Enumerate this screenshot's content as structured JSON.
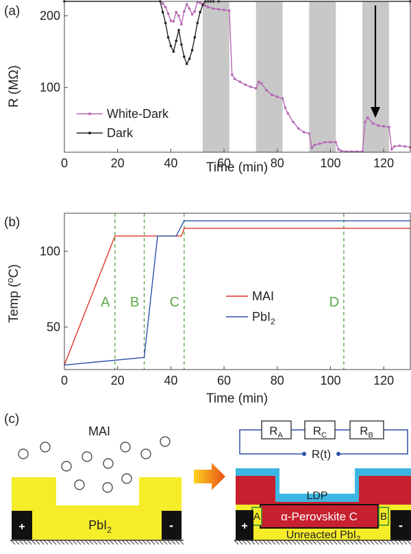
{
  "chart_data": [
    {
      "panel_label": "(a)",
      "type": "line",
      "xlabel": "Time (min)",
      "ylabel": "R (MΩ)",
      "xlim": [
        0,
        130
      ],
      "ylim": [
        10,
        220
      ],
      "x_ticks": [
        "0",
        "20",
        "40",
        "60",
        "80",
        "100",
        "120"
      ],
      "y_ticks": [
        "100",
        "200"
      ],
      "shaded_intervals": [
        [
          52,
          62
        ],
        [
          72,
          82
        ],
        [
          92,
          102
        ],
        [
          112,
          122
        ]
      ],
      "legend": {
        "placement": "bottom-left",
        "entries": [
          "White-Dark",
          "Dark"
        ]
      },
      "series": [
        {
          "name": "White-Dark",
          "color": "#b565b5",
          "x": [
            0,
            36,
            37,
            38,
            39,
            40,
            41,
            42,
            43,
            44,
            45,
            46,
            47,
            48,
            49,
            50,
            51,
            52,
            53,
            54,
            56,
            58,
            60,
            62,
            63,
            64,
            66,
            68,
            70,
            72,
            73,
            74,
            76,
            78,
            80,
            82,
            83,
            84,
            86,
            88,
            90,
            92,
            93,
            94,
            96,
            98,
            100,
            102,
            103,
            104,
            106,
            108,
            110,
            112,
            113,
            114,
            116,
            118,
            120,
            122,
            123,
            124,
            126,
            128,
            130
          ],
          "y": [
            220,
            220,
            217,
            212,
            203,
            193,
            192,
            205,
            200,
            188,
            206,
            216,
            210,
            202,
            206,
            219,
            218,
            216,
            214,
            212,
            210,
            209,
            208,
            207,
            118,
            112,
            108,
            104,
            101,
            99,
            108,
            106,
            96,
            90,
            87,
            85,
            72,
            64,
            52,
            43,
            38,
            36,
            16,
            20,
            22,
            24,
            24,
            24,
            14,
            12,
            11,
            11,
            11,
            11,
            52,
            58,
            50,
            47,
            46,
            45,
            14,
            18,
            19,
            18,
            17
          ]
        },
        {
          "name": "Dark",
          "color": "#222222",
          "x": [
            0,
            36,
            37,
            38,
            39,
            40,
            41,
            42,
            43,
            44,
            45,
            46,
            47,
            48,
            49,
            50,
            51,
            52,
            53,
            54,
            55,
            56,
            58,
            130
          ],
          "y": [
            220,
            220,
            205,
            190,
            170,
            158,
            150,
            165,
            180,
            160,
            143,
            133,
            140,
            152,
            170,
            190,
            205,
            215,
            220,
            220,
            220,
            220,
            220,
            220
          ]
        }
      ]
    },
    {
      "panel_label": "(b)",
      "type": "line",
      "xlabel": "Time (min)",
      "ylabel": "Temp (°C)",
      "xlim": [
        0,
        130
      ],
      "ylim": [
        22,
        125
      ],
      "x_ticks": [
        "0",
        "20",
        "40",
        "60",
        "80",
        "100",
        "120"
      ],
      "y_ticks": [
        "50",
        "100"
      ],
      "legend": {
        "placement": "center",
        "entries": [
          "MAI",
          "PbI2"
        ]
      },
      "markers": [
        {
          "label": "A",
          "x": 19
        },
        {
          "label": "B",
          "x": 30
        },
        {
          "label": "C",
          "x": 45
        },
        {
          "label": "D",
          "x": 105
        }
      ],
      "series": [
        {
          "name": "MAI",
          "color": "#e0302a",
          "x": [
            0,
            19,
            44,
            45,
            130
          ],
          "y": [
            25,
            110,
            110,
            115,
            115
          ]
        },
        {
          "name": "PbI2",
          "color": "#2a4fa8",
          "x": [
            0,
            30,
            35,
            40,
            42,
            45,
            130
          ],
          "y": [
            25,
            30,
            110,
            110,
            110,
            120,
            120
          ]
        }
      ]
    }
  ],
  "panel_c": {
    "label": "(c)",
    "left": {
      "mai_label": "MAI",
      "pbi2_label": "PbI",
      "pbi2_sub": "2",
      "plus": "+",
      "minus": "-"
    },
    "right": {
      "resistors": [
        {
          "main": "R",
          "sub": "A"
        },
        {
          "main": "R",
          "sub": "C"
        },
        {
          "main": "R",
          "sub": "B"
        }
      ],
      "rt_label": "R(t)",
      "ldp_label": "LDP",
      "perovskite_label": "α-Perovskite  C",
      "region_a": "A",
      "region_b": "B",
      "unreacted_label": "Unreacted PbI",
      "unreacted_sub": "2",
      "plus": "+",
      "minus": "-"
    }
  }
}
